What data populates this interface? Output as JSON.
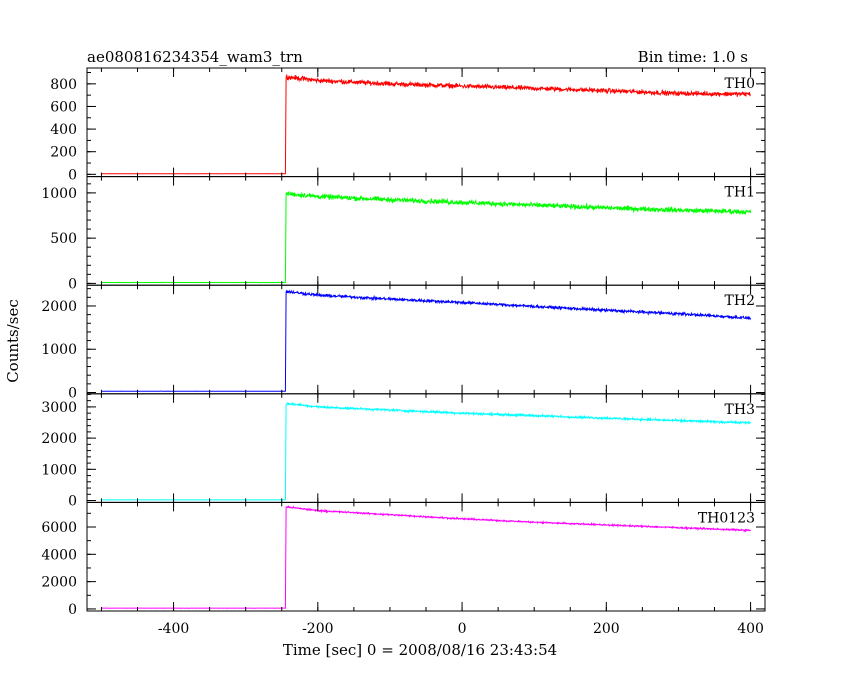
{
  "title_left": "ae080816234354_wam3_trn",
  "title_right": "Bin time: 1.0 s",
  "ylabel": "Counts/sec",
  "xlabel": "Time [sec] 0 = 2008/08/16 23:43:54",
  "chart_data": {
    "type": "line",
    "xlim": [
      -520,
      420
    ],
    "x_ticks": [
      "-400",
      "-200",
      "0",
      "200",
      "400"
    ],
    "x_tick_values": [
      -400,
      -200,
      0,
      200,
      400
    ],
    "x_minor_step": 50,
    "grid": false,
    "x_start": -500,
    "x_end": 400,
    "trigger_time": -245,
    "panels": [
      {
        "name": "TH0",
        "color": "#ff0000",
        "ylim": [
          -20,
          940
        ],
        "yticks": [
          "0",
          "200",
          "400",
          "600",
          "800"
        ],
        "ytick_values": [
          0,
          200,
          400,
          600,
          800
        ],
        "y_minor_step": 100,
        "baseline": 5,
        "x": [
          -240,
          -200,
          -100,
          0,
          100,
          200,
          300,
          400
        ],
        "y": [
          860,
          830,
          800,
          780,
          760,
          740,
          715,
          710
        ],
        "noise": 30
      },
      {
        "name": "TH1",
        "color": "#00ff00",
        "ylim": [
          -20,
          1180
        ],
        "yticks": [
          "0",
          "500",
          "1000"
        ],
        "ytick_values": [
          0,
          500,
          1000
        ],
        "y_minor_step": 100,
        "baseline": 10,
        "x": [
          -240,
          -200,
          -100,
          0,
          100,
          200,
          300,
          400
        ],
        "y": [
          990,
          960,
          925,
          895,
          865,
          835,
          810,
          790
        ],
        "noise": 40
      },
      {
        "name": "TH2",
        "color": "#0000ff",
        "ylim": [
          -30,
          2480
        ],
        "yticks": [
          "0",
          "1000",
          "2000"
        ],
        "ytick_values": [
          0,
          1000,
          2000
        ],
        "y_minor_step": 200,
        "baseline": 30,
        "x": [
          -240,
          -200,
          -100,
          0,
          100,
          200,
          300,
          400
        ],
        "y": [
          2330,
          2250,
          2160,
          2080,
          1990,
          1900,
          1820,
          1720
        ],
        "noise": 45
      },
      {
        "name": "TH3",
        "color": "#00ffff",
        "ylim": [
          -60,
          3420
        ],
        "yticks": [
          "0",
          "1000",
          "2000",
          "3000"
        ],
        "ytick_values": [
          0,
          1000,
          2000,
          3000
        ],
        "y_minor_step": 200,
        "baseline": 20,
        "x": [
          -240,
          -200,
          -100,
          0,
          100,
          200,
          300,
          400
        ],
        "y": [
          3100,
          3000,
          2900,
          2800,
          2720,
          2640,
          2560,
          2490
        ],
        "noise": 50
      },
      {
        "name": "TH0123",
        "color": "#ff00ff",
        "ylim": [
          -150,
          7800
        ],
        "yticks": [
          "0",
          "2000",
          "4000",
          "6000"
        ],
        "ytick_values": [
          0,
          2000,
          4000,
          6000
        ],
        "y_minor_step": 1000,
        "baseline": 60,
        "x": [
          -240,
          -200,
          -100,
          0,
          100,
          200,
          300,
          400
        ],
        "y": [
          7450,
          7200,
          6900,
          6600,
          6350,
          6150,
          5950,
          5750
        ],
        "noise": 80
      }
    ]
  }
}
